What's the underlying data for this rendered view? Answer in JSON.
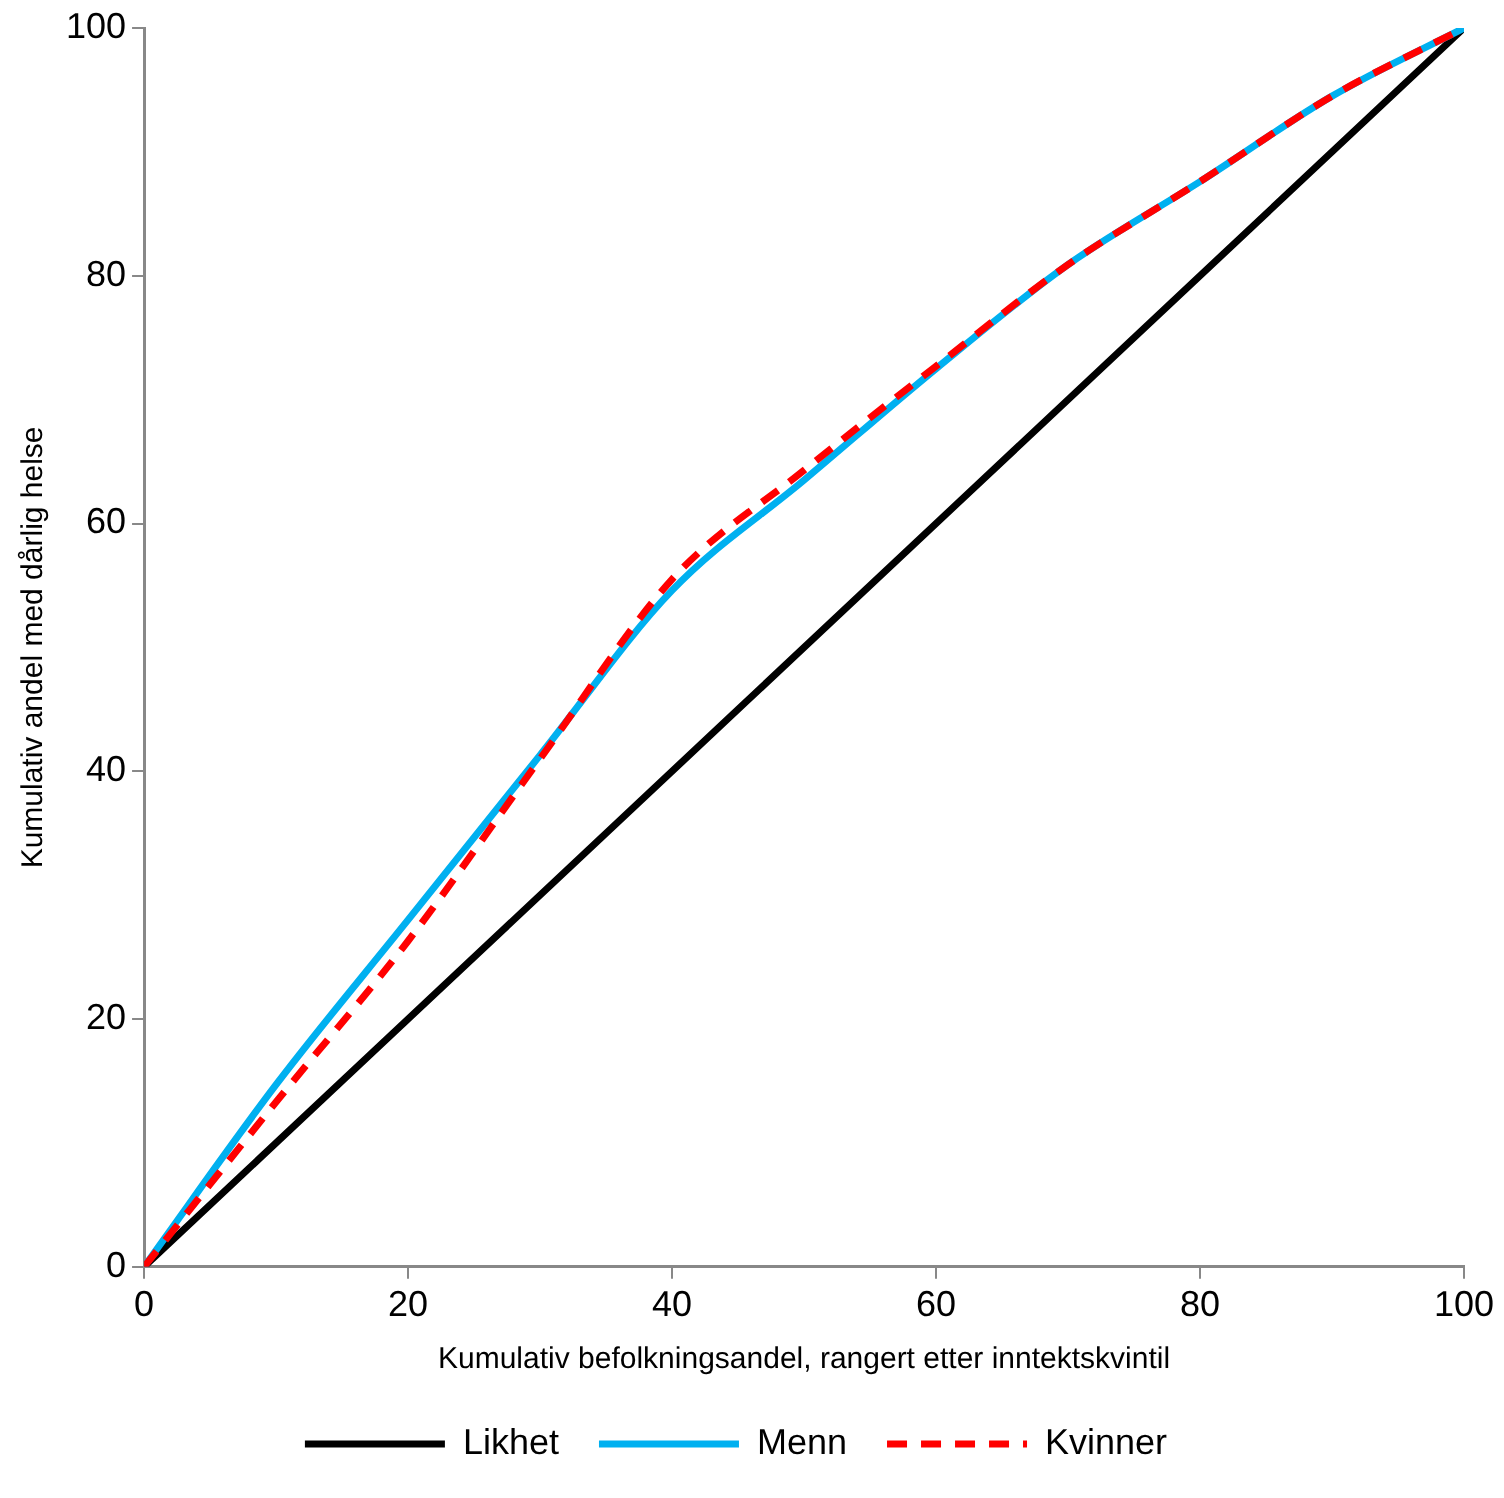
{
  "chart_data": {
    "type": "line",
    "xlabel": "Kumulativ befolkningsandel, rangert etter inntektskvintil",
    "ylabel": "Kumulativ andel med dårlig helse",
    "xlim": [
      0,
      100
    ],
    "xticks": [
      0,
      20,
      40,
      60,
      80,
      100
    ],
    "ylim": [
      0,
      100
    ],
    "yticks": [
      0,
      20,
      40,
      60,
      80,
      100
    ],
    "grid": false,
    "legend": "bottom",
    "marker": "none",
    "series": [
      {
        "name": "Likhet",
        "color": "#000000",
        "x": [
          0,
          100
        ],
        "values": [
          0,
          100
        ],
        "line_style": "solid"
      },
      {
        "name": "Menn",
        "color": "#00b0f0",
        "x": [
          0,
          10,
          20,
          30,
          40,
          50,
          60,
          70,
          80,
          90,
          100
        ],
        "values": [
          0,
          14.7,
          28,
          41.3,
          54.6,
          63.5,
          72.5,
          80.9,
          87.6,
          94.5,
          100
        ],
        "line_style": "solid"
      },
      {
        "name": "Kvinner",
        "color": "#ff0000",
        "x": [
          0,
          10,
          20,
          30,
          40,
          50,
          60,
          70,
          80,
          90,
          100
        ],
        "values": [
          0,
          13.3,
          26.3,
          41,
          55.5,
          64.3,
          72.7,
          80.9,
          87.6,
          94.5,
          100
        ],
        "line_style": "dashed"
      }
    ]
  }
}
